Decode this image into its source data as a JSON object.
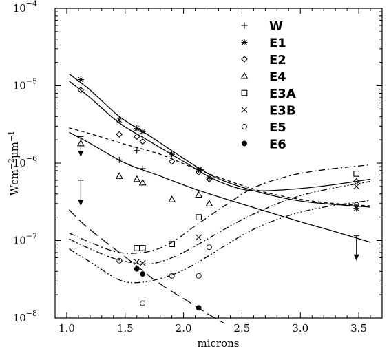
{
  "chart_data": {
    "type": "scatter",
    "title": "",
    "xlabel": "microns",
    "ylabel": "Wcm⁻²μm⁻¹",
    "ylabel_parts": {
      "base1": "Wcm",
      "exp1": "−2",
      "base2": "μm",
      "exp2": "−1"
    },
    "xlim": [
      0.9,
      3.7
    ],
    "ylim": [
      1e-08,
      0.0001
    ],
    "y_scale": "log",
    "x_ticks": [
      1.0,
      1.5,
      2.0,
      2.5,
      3.0,
      3.5
    ],
    "x_tick_labels": [
      "1.0",
      "1.5",
      "2.0",
      "2.5",
      "3.0",
      "3.5"
    ],
    "y_ticks": [
      1e-08,
      1e-07,
      1e-06,
      1e-05,
      0.0001
    ],
    "y_tick_labels": [
      {
        "base": "10",
        "exp": "−8"
      },
      {
        "base": "10",
        "exp": "−7"
      },
      {
        "base": "10",
        "exp": "−6"
      },
      {
        "base": "10",
        "exp": "−5"
      },
      {
        "base": "10",
        "exp": "−4"
      }
    ],
    "grid": false,
    "legend": {
      "position": "top-right"
    },
    "series": [
      {
        "name": "W",
        "marker": "plus",
        "points": [
          [
            1.45,
            1.1e-06
          ],
          [
            1.6,
            1.45e-06
          ],
          [
            1.65,
            8.5e-07
          ],
          [
            2.15,
            8.2e-07
          ]
        ]
      },
      {
        "name": "E1",
        "marker": "asterisk",
        "points": [
          [
            1.12,
            1.2e-05
          ],
          [
            1.45,
            3.6e-06
          ],
          [
            1.6,
            2.8e-06
          ],
          [
            1.65,
            2.55e-06
          ],
          [
            1.9,
            1.3e-06
          ],
          [
            2.13,
            8.2e-07
          ],
          [
            2.22,
            6.5e-07
          ],
          [
            3.48,
            2.6e-07
          ]
        ]
      },
      {
        "name": "E2",
        "marker": "diamond",
        "points": [
          [
            1.12,
            8.8e-06
          ],
          [
            1.45,
            2.35e-06
          ],
          [
            1.6,
            2.2e-06
          ],
          [
            1.65,
            1.9e-06
          ],
          [
            1.9,
            1.05e-06
          ],
          [
            2.13,
            7.6e-07
          ],
          [
            2.22,
            6.2e-07
          ],
          [
            3.48,
            5.8e-07
          ]
        ]
      },
      {
        "name": "E4",
        "marker": "triangle",
        "points": [
          [
            1.12,
            1.8e-06
          ],
          [
            1.45,
            6.8e-07
          ],
          [
            1.6,
            6.2e-07
          ],
          [
            1.65,
            5.6e-07
          ],
          [
            1.9,
            3.4e-07
          ],
          [
            2.13,
            3.9e-07
          ],
          [
            2.22,
            3e-07
          ]
        ]
      },
      {
        "name": "E3A",
        "marker": "square",
        "points": [
          [
            1.6,
            8e-08
          ],
          [
            1.65,
            8e-08
          ],
          [
            1.9,
            9e-08
          ],
          [
            2.13,
            2e-07
          ],
          [
            3.48,
            7.3e-07
          ]
        ]
      },
      {
        "name": "E3B",
        "marker": "cross",
        "points": [
          [
            1.6,
            5.3e-08
          ],
          [
            1.65,
            5.1e-08
          ],
          [
            2.13,
            1.1e-07
          ],
          [
            3.48,
            5e-07
          ]
        ]
      },
      {
        "name": "E5",
        "marker": "open-circle",
        "points": [
          [
            1.45,
            5.5e-08
          ],
          [
            1.65,
            1.55e-08
          ],
          [
            1.9,
            3.5e-08
          ],
          [
            2.13,
            3.5e-08
          ],
          [
            2.22,
            8.2e-08
          ],
          [
            3.48,
            2.9e-07
          ]
        ]
      },
      {
        "name": "E6",
        "marker": "filled-circle",
        "points": [
          [
            1.6,
            4.3e-08
          ],
          [
            1.65,
            3.7e-08
          ],
          [
            2.13,
            1.35e-08
          ]
        ]
      }
    ],
    "upper_limits": [
      {
        "x": 1.12,
        "from": 2.2e-06,
        "to": 1.2e-06
      },
      {
        "x": 1.12,
        "from": 6e-07,
        "to": 2.8e-07
      },
      {
        "x": 3.48,
        "from": 1.15e-07,
        "to": 5.5e-08
      }
    ],
    "curves": [
      {
        "style": "solid",
        "points": [
          [
            1.02,
            1.42e-05
          ],
          [
            1.2,
            8.8e-06
          ],
          [
            1.45,
            4e-06
          ],
          [
            1.7,
            2.3e-06
          ],
          [
            2.0,
            1.15e-06
          ],
          [
            2.25,
            6.8e-07
          ],
          [
            2.5,
            4.9e-07
          ],
          [
            2.8,
            3.7e-07
          ],
          [
            3.1,
            3.1e-07
          ],
          [
            3.6,
            2.7e-07
          ]
        ]
      },
      {
        "style": "solid",
        "points": [
          [
            1.02,
            1.15e-05
          ],
          [
            1.2,
            7e-06
          ],
          [
            1.45,
            3.3e-06
          ],
          [
            1.7,
            1.95e-06
          ],
          [
            2.0,
            1.05e-06
          ],
          [
            2.25,
            6.3e-07
          ],
          [
            2.5,
            4.6e-07
          ],
          [
            2.7,
            4.4e-07
          ],
          [
            3.0,
            4.7e-07
          ],
          [
            3.3,
            5.3e-07
          ],
          [
            3.6,
            6.2e-07
          ]
        ]
      },
      {
        "style": "dashed",
        "points": [
          [
            1.02,
            2.85e-06
          ],
          [
            1.2,
            2.4e-06
          ],
          [
            1.5,
            1.75e-06
          ],
          [
            1.8,
            1.3e-06
          ],
          [
            2.1,
            8.5e-07
          ],
          [
            2.4,
            5.8e-07
          ],
          [
            2.7,
            4.2e-07
          ],
          [
            3.0,
            3.4e-07
          ],
          [
            3.3,
            3e-07
          ],
          [
            3.6,
            2.8e-07
          ]
        ]
      },
      {
        "style": "solid",
        "points": [
          [
            1.02,
            2.5e-06
          ],
          [
            1.2,
            1.8e-06
          ],
          [
            1.5,
            1e-06
          ],
          [
            1.8,
            6.8e-07
          ],
          [
            2.1,
            4.6e-07
          ],
          [
            2.4,
            3.3e-07
          ],
          [
            2.7,
            2.4e-07
          ],
          [
            3.0,
            1.75e-07
          ],
          [
            3.3,
            1.3e-07
          ],
          [
            3.6,
            9.5e-08
          ]
        ]
      },
      {
        "style": "long-dashed",
        "points": [
          [
            1.02,
            2.5e-07
          ],
          [
            1.15,
            1.6e-07
          ],
          [
            1.3,
            1.05e-07
          ],
          [
            1.45,
            7e-08
          ],
          [
            1.6,
            4.7e-08
          ],
          [
            1.75,
            3.1e-08
          ],
          [
            1.9,
            2.2e-08
          ],
          [
            2.05,
            1.6e-08
          ],
          [
            2.2,
            1.15e-08
          ],
          [
            2.35,
            8.5e-09
          ]
        ]
      },
      {
        "style": "dash-dot",
        "points": [
          [
            1.02,
            1.25e-07
          ],
          [
            1.2,
            9.5e-08
          ],
          [
            1.45,
            7e-08
          ],
          [
            1.7,
            7.2e-08
          ],
          [
            1.9,
            9.5e-08
          ],
          [
            2.1,
            1.55e-07
          ],
          [
            2.35,
            2.8e-07
          ],
          [
            2.6,
            4.8e-07
          ],
          [
            2.9,
            6.8e-07
          ],
          [
            3.2,
            8.2e-07
          ],
          [
            3.6,
            9.5e-07
          ]
        ]
      },
      {
        "style": "dash-dot-dot",
        "points": [
          [
            1.02,
            1.05e-07
          ],
          [
            1.2,
            7.8e-08
          ],
          [
            1.45,
            5.6e-08
          ],
          [
            1.7,
            5e-08
          ],
          [
            1.9,
            6e-08
          ],
          [
            2.1,
            8.5e-08
          ],
          [
            2.35,
            1.4e-07
          ],
          [
            2.6,
            2.2e-07
          ],
          [
            2.9,
            3.4e-07
          ],
          [
            3.2,
            4.5e-07
          ],
          [
            3.6,
            5.8e-07
          ]
        ]
      },
      {
        "style": "dash-dot-dot-dot",
        "points": [
          [
            1.02,
            7.8e-08
          ],
          [
            1.2,
            5.3e-08
          ],
          [
            1.45,
            3.1e-08
          ],
          [
            1.65,
            2.9e-08
          ],
          [
            1.9,
            3.6e-08
          ],
          [
            2.1,
            5e-08
          ],
          [
            2.35,
            8.5e-08
          ],
          [
            2.6,
            1.4e-07
          ],
          [
            2.9,
            2.1e-07
          ],
          [
            3.2,
            2.7e-07
          ],
          [
            3.6,
            3.3e-07
          ]
        ]
      }
    ]
  }
}
